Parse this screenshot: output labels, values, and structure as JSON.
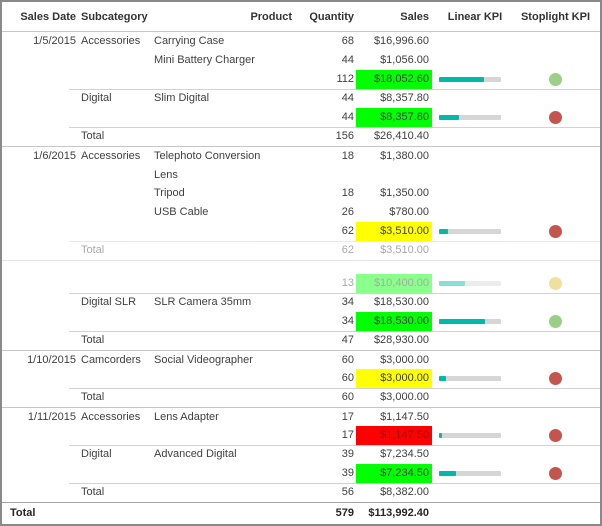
{
  "table": {
    "columns": [
      "Sales Date",
      "Subcategory",
      "Product",
      "Quantity",
      "Sales",
      "Linear KPI",
      "Stoplight KPI"
    ],
    "rows": [
      {
        "date": "1/5/2015",
        "subcategory": "Accessories",
        "product": "Carrying Case",
        "quantity": "68",
        "sales": "$16,996.60"
      },
      {
        "product": "Mini Battery Charger",
        "quantity": "44",
        "sales": "$1,056.00"
      },
      {
        "quantity": "112",
        "sales": "$18,052.60",
        "highlight": "green",
        "bar_pct": 72,
        "stoplight": "green"
      },
      {
        "subcategory": "Digital",
        "product": "Slim Digital",
        "quantity": "44",
        "sales": "$8,357.80",
        "sep": "partial"
      },
      {
        "quantity": "44",
        "sales": "$8,357.80",
        "highlight": "green",
        "bar_pct": 33,
        "stoplight": "red"
      },
      {
        "subcategory": "Total",
        "quantity": "156",
        "sales": "$26,410.40",
        "sep": "partial"
      },
      {
        "date": "1/6/2015",
        "subcategory": "Accessories",
        "product": "Telephoto Conversion Lens",
        "quantity": "18",
        "sales": "$1,380.00",
        "sep": "full",
        "twoline": true
      },
      {
        "product": "Tripod",
        "quantity": "18",
        "sales": "$1,350.00"
      },
      {
        "product": "USB Cable",
        "quantity": "26",
        "sales": "$780.00"
      },
      {
        "quantity": "62",
        "sales": "$3,510.00",
        "highlight": "yellow",
        "bar_pct": 14,
        "stoplight": "red"
      },
      {
        "subcategory": "Total",
        "quantity": "62",
        "sales": "$3,510.00",
        "sep": "partial",
        "faded": true
      },
      {
        "kind": "gap",
        "sep": "full",
        "faded": true
      },
      {
        "quantity": "13",
        "sales": "$10,400.00",
        "highlight": "green",
        "bar_pct": 42,
        "stoplight": "yellow",
        "faded": true
      },
      {
        "subcategory": "Digital SLR",
        "product": "SLR Camera 35mm",
        "quantity": "34",
        "sales": "$18,530.00",
        "sep": "partial"
      },
      {
        "quantity": "34",
        "sales": "$18,530.00",
        "highlight": "green",
        "bar_pct": 74,
        "stoplight": "green"
      },
      {
        "subcategory": "Total",
        "quantity": "47",
        "sales": "$28,930.00",
        "sep": "partial"
      },
      {
        "date": "1/10/2015",
        "subcategory": "Camcorders",
        "product": "Social Videographer",
        "quantity": "60",
        "sales": "$3,000.00",
        "sep": "full"
      },
      {
        "quantity": "60",
        "sales": "$3,000.00",
        "highlight": "yellow",
        "bar_pct": 12,
        "stoplight": "red"
      },
      {
        "subcategory": "Total",
        "quantity": "60",
        "sales": "$3,000.00",
        "sep": "partial"
      },
      {
        "date": "1/11/2015",
        "subcategory": "Accessories",
        "product": "Lens Adapter",
        "quantity": "17",
        "sales": "$1,147.50",
        "sep": "full"
      },
      {
        "quantity": "17",
        "sales": "$1,147.50",
        "highlight": "red",
        "bar_pct": 5,
        "stoplight": "red"
      },
      {
        "subcategory": "Digital",
        "product": "Advanced Digital",
        "quantity": "39",
        "sales": "$7,234.50",
        "sep": "partial"
      },
      {
        "quantity": "39",
        "sales": "$7,234.50",
        "highlight": "green",
        "bar_pct": 27,
        "stoplight": "red"
      },
      {
        "subcategory": "Total",
        "quantity": "56",
        "sales": "$8,382.00",
        "sep": "partial"
      }
    ],
    "grand_total": {
      "label": "Total",
      "quantity": "579",
      "sales": "$113,992.40"
    }
  },
  "colors": {
    "highlight_green": "#00FF00",
    "highlight_yellow": "#FFFF00",
    "highlight_red": "#FF0000",
    "bar_fill_teal": "#01B8AA",
    "bar_track_gray": "#D6D6D6",
    "stoplight_green": "#9BCE87",
    "stoplight_yellow": "#DDBE27",
    "stoplight_red": "#C4544E"
  }
}
